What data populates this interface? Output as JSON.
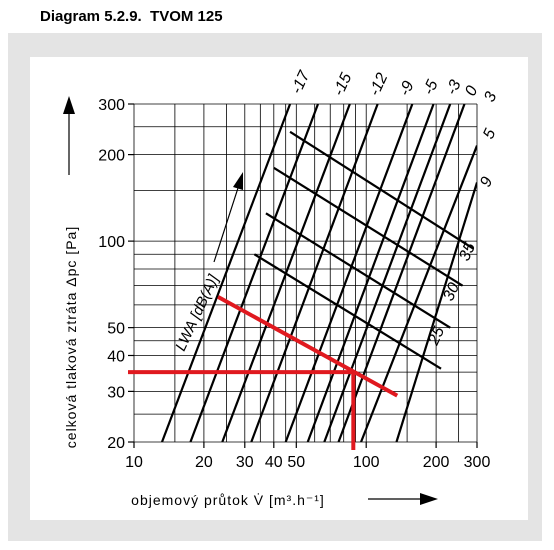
{
  "title": "Diagram 5.2.9.  TVOM 125",
  "chart_data": {
    "type": "line",
    "xlabel": "objemový průtok V̇ [m³.h⁻¹]",
    "ylabel": "celková tlaková ztráta Δpc [Pa]",
    "x_scale": "log",
    "y_scale": "log",
    "xlim": [
      10,
      300
    ],
    "ylim": [
      20,
      300
    ],
    "x_ticks": [
      10,
      20,
      30,
      40,
      50,
      100,
      200,
      300
    ],
    "x_tick_labels": [
      "10",
      "20",
      "30",
      "40",
      "50",
      "100",
      "200",
      "300"
    ],
    "y_ticks": [
      20,
      30,
      40,
      50,
      100,
      200,
      300
    ],
    "y_tick_labels": [
      "20",
      "30",
      "40",
      "50",
      "100",
      "200",
      "300"
    ],
    "grid": true,
    "damper_curves": {
      "labels": [
        "-17",
        "-15",
        "-12",
        "-9",
        "-5",
        "-3",
        "0",
        "3",
        "5",
        "9"
      ],
      "series": [
        {
          "name": "-17",
          "x": [
            13.2,
            47
          ],
          "y": [
            20,
            300
          ]
        },
        {
          "name": "-15",
          "x": [
            17.5,
            62
          ],
          "y": [
            20,
            300
          ]
        },
        {
          "name": "-12",
          "x": [
            24,
            85
          ],
          "y": [
            20,
            300
          ]
        },
        {
          "name": "-9",
          "x": [
            32,
            112
          ],
          "y": [
            20,
            300
          ]
        },
        {
          "name": "-5",
          "x": [
            45,
            158
          ],
          "y": [
            20,
            300
          ]
        },
        {
          "name": "-3",
          "x": [
            56,
            195
          ],
          "y": [
            20,
            300
          ]
        },
        {
          "name": "0",
          "x": [
            66,
            230
          ],
          "y": [
            20,
            300
          ]
        },
        {
          "name": "3",
          "x": [
            76,
            265
          ],
          "y": [
            20,
            300
          ]
        },
        {
          "name": "5",
          "x": [
            95,
            300
          ],
          "y": [
            20,
            215
          ]
        },
        {
          "name": "9",
          "x": [
            135,
            300
          ],
          "y": [
            20,
            160
          ]
        }
      ]
    },
    "sound_curves": {
      "axis_label": "LWA [dB(A)]",
      "labels": [
        "25",
        "30",
        "35"
      ],
      "series": [
        {
          "name": "",
          "x": [
            47,
            290
          ],
          "y": [
            240,
            94
          ]
        },
        {
          "name": "",
          "x": [
            40,
            260
          ],
          "y": [
            180,
            70
          ]
        },
        {
          "name": "",
          "x": [
            37,
            230
          ],
          "y": [
            125,
            50
          ]
        },
        {
          "name": "",
          "x": [
            33,
            210
          ],
          "y": [
            90,
            36
          ]
        }
      ]
    },
    "example_path": {
      "x": [
        23,
        136
      ],
      "y": [
        64,
        29
      ],
      "operating_point": {
        "x": 88,
        "y": 35
      }
    }
  }
}
